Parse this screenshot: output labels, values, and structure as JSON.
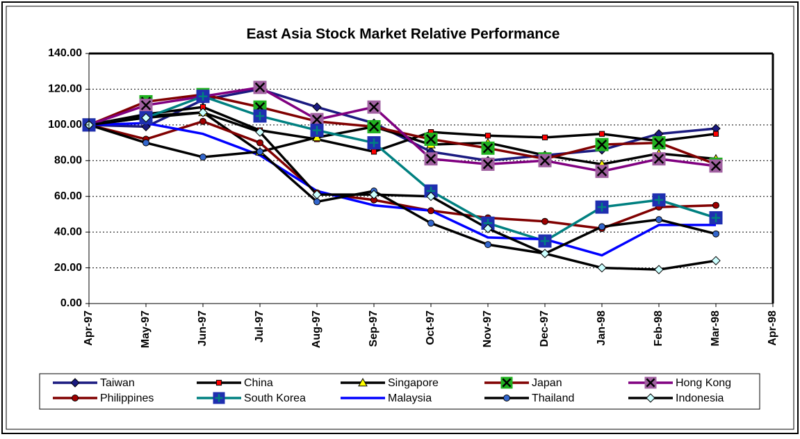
{
  "chart_data": {
    "type": "line",
    "title": "East Asia Stock Market Relative Performance",
    "categories": [
      "Apr-97",
      "May-97",
      "Jun-97",
      "Jul-97",
      "Aug-97",
      "Sep-97",
      "Oct-97",
      "Nov-97",
      "Dec-97",
      "Jan-98",
      "Feb-98",
      "Mar-98",
      "Apr-98"
    ],
    "ylim": [
      0,
      140
    ],
    "yticks": [
      {
        "value": 0,
        "label": "0.00"
      },
      {
        "value": 20,
        "label": "20.00"
      },
      {
        "value": 40,
        "label": "40.00"
      },
      {
        "value": 60,
        "label": "60.00"
      },
      {
        "value": 80,
        "label": "80.00"
      },
      {
        "value": 100,
        "label": "100.00"
      },
      {
        "value": 120,
        "label": "120.00"
      },
      {
        "value": 140,
        "label": "140.00"
      }
    ],
    "grid": true,
    "legend": "bottom",
    "series": [
      {
        "name": "Taiwan",
        "color": "#1a1a80",
        "marker": "diamond",
        "marker_color": "#1a1a80",
        "values": [
          100,
          99,
          114,
          120,
          110,
          101,
          85,
          80,
          83,
          86,
          95,
          98,
          null
        ]
      },
      {
        "name": "China",
        "color": "#000000",
        "marker": "square",
        "marker_color": "#ff0000",
        "values": [
          100,
          106,
          110,
          97,
          92,
          85,
          96,
          94,
          93,
          95,
          91,
          95,
          null
        ]
      },
      {
        "name": "Singapore",
        "color": "#000000",
        "marker": "triangle",
        "marker_color": "#ffff00",
        "values": [
          100,
          105,
          107,
          85,
          93,
          99,
          89,
          90,
          83,
          78,
          84,
          81,
          null
        ]
      },
      {
        "name": "Japan",
        "color": "#800000",
        "marker": "squarex",
        "marker_color": "#20b020",
        "values": [
          100,
          113,
          117,
          110,
          102,
          99,
          92,
          87,
          81,
          89,
          90,
          78,
          null
        ]
      },
      {
        "name": "Hong Kong",
        "color": "#800080",
        "marker": "squarex",
        "marker_color": "#a060a0",
        "values": [
          100,
          111,
          116,
          121,
          103,
          110,
          81,
          78,
          80,
          74,
          81,
          77,
          null
        ]
      },
      {
        "name": "Philippines",
        "color": "#800000",
        "marker": "circle",
        "marker_color": "#a00000",
        "values": [
          100,
          92,
          102,
          90,
          62,
          58,
          52,
          48,
          46,
          42,
          54,
          55,
          null
        ]
      },
      {
        "name": "South Korea",
        "color": "#008080",
        "marker": "squareplus",
        "marker_color": "#1f2fb0",
        "values": [
          100,
          104,
          116,
          105,
          97,
          90,
          63,
          45,
          35,
          54,
          58,
          48,
          null
        ]
      },
      {
        "name": "Malaysia",
        "color": "#0000ff",
        "marker": "none",
        "marker_color": "#0000ff",
        "values": [
          100,
          101,
          95,
          83,
          63,
          55,
          52,
          37,
          36,
          27,
          44,
          44,
          null
        ]
      },
      {
        "name": "Thailand",
        "color": "#000000",
        "marker": "circle",
        "marker_color": "#3366cc",
        "values": [
          100,
          90,
          82,
          85,
          57,
          63,
          45,
          33,
          28,
          43,
          47,
          39,
          null
        ]
      },
      {
        "name": "Indonesia",
        "color": "#000000",
        "marker": "diamond",
        "marker_color": "#ccffff",
        "values": [
          100,
          104,
          107,
          96,
          61,
          61,
          60,
          42,
          28,
          20,
          19,
          24,
          null
        ]
      }
    ]
  }
}
